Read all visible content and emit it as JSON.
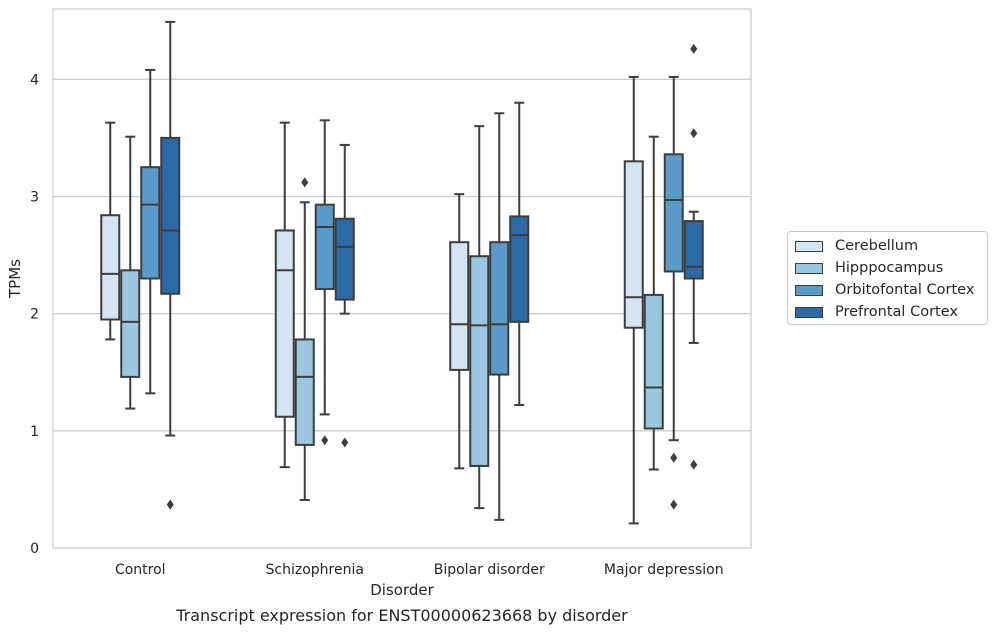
{
  "caption": "Transcript expression for ENST00000623668 by disorder",
  "chart_data": {
    "type": "box",
    "title": "",
    "xlabel": "Disorder",
    "ylabel": "TPMs",
    "ylim": [
      0,
      4.6
    ],
    "yticks": [
      0,
      1,
      2,
      3,
      4
    ],
    "grid": "horizontal",
    "legend_position": "center-right",
    "categories": [
      "Control",
      "Schizophrenia",
      "Bipolar disorder",
      "Major depression"
    ],
    "series": [
      {
        "name": "Cerebellum",
        "color": "#d4e4f2",
        "boxes": [
          {
            "whislo": 1.78,
            "q1": 1.95,
            "med": 2.34,
            "q3": 2.84,
            "whishi": 3.63,
            "fliers": []
          },
          {
            "whislo": 0.69,
            "q1": 1.12,
            "med": 2.37,
            "q3": 2.71,
            "whishi": 3.63,
            "fliers": []
          },
          {
            "whislo": 0.68,
            "q1": 1.52,
            "med": 1.91,
            "q3": 2.61,
            "whishi": 3.02,
            "fliers": []
          },
          {
            "whislo": 0.21,
            "q1": 1.88,
            "med": 2.14,
            "q3": 3.3,
            "whishi": 4.02,
            "fliers": []
          }
        ]
      },
      {
        "name": "Hipppocampus",
        "color": "#9ac6e0",
        "boxes": [
          {
            "whislo": 1.19,
            "q1": 1.46,
            "med": 1.93,
            "q3": 2.37,
            "whishi": 3.51,
            "fliers": []
          },
          {
            "whislo": 0.41,
            "q1": 0.88,
            "med": 1.46,
            "q3": 1.78,
            "whishi": 2.95,
            "fliers": [
              3.12
            ]
          },
          {
            "whislo": 0.34,
            "q1": 0.7,
            "med": 1.9,
            "q3": 2.49,
            "whishi": 3.6,
            "fliers": []
          },
          {
            "whislo": 0.67,
            "q1": 1.02,
            "med": 1.37,
            "q3": 2.16,
            "whishi": 3.51,
            "fliers": []
          }
        ]
      },
      {
        "name": "Orbitofontal Cortex",
        "color": "#5b9bc9",
        "boxes": [
          {
            "whislo": 1.32,
            "q1": 2.3,
            "med": 2.93,
            "q3": 3.25,
            "whishi": 4.08,
            "fliers": []
          },
          {
            "whislo": 1.14,
            "q1": 2.21,
            "med": 2.74,
            "q3": 2.93,
            "whishi": 3.65,
            "fliers": [
              0.92
            ]
          },
          {
            "whislo": 0.24,
            "q1": 1.48,
            "med": 1.91,
            "q3": 2.61,
            "whishi": 3.71,
            "fliers": []
          },
          {
            "whislo": 0.92,
            "q1": 2.36,
            "med": 2.97,
            "q3": 3.36,
            "whishi": 4.02,
            "fliers": [
              0.77,
              0.37
            ]
          }
        ]
      },
      {
        "name": "Prefrontal Cortex",
        "color": "#2b6aa7",
        "boxes": [
          {
            "whislo": 0.96,
            "q1": 2.17,
            "med": 2.71,
            "q3": 3.5,
            "whishi": 4.49,
            "fliers": [
              0.37
            ]
          },
          {
            "whislo": 2.0,
            "q1": 2.12,
            "med": 2.57,
            "q3": 2.81,
            "whishi": 3.44,
            "fliers": [
              0.9
            ]
          },
          {
            "whislo": 1.22,
            "q1": 1.93,
            "med": 2.67,
            "q3": 2.83,
            "whishi": 3.8,
            "fliers": []
          },
          {
            "whislo": 1.75,
            "q1": 2.3,
            "med": 2.4,
            "q3": 2.79,
            "whishi": 2.87,
            "fliers": [
              4.26,
              3.54,
              0.71
            ]
          }
        ]
      }
    ]
  }
}
